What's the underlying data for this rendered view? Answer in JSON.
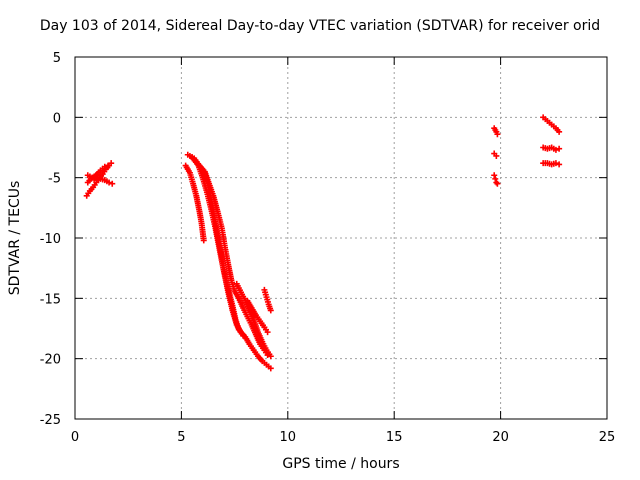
{
  "chart_data": {
    "type": "scatter",
    "title": "Day 103 of 2014, Sidereal Day-to-day VTEC variation (SDTVAR) for receiver orid",
    "xlabel": "GPS time / hours",
    "ylabel": "SDTVAR / TECUs",
    "xlim": [
      0,
      25
    ],
    "ylim": [
      -25,
      5
    ],
    "xticks": [
      "0",
      "5",
      "10",
      "15",
      "20",
      "25"
    ],
    "yticks": [
      "5",
      "0",
      "-5",
      "-10",
      "-15",
      "-20",
      "-25"
    ],
    "grid": true,
    "marker": "plus",
    "color": "#ff0000",
    "series": [
      {
        "values": [
          [
            0.55,
            -6.5
          ],
          [
            0.7,
            -6.1
          ],
          [
            0.85,
            -5.8
          ],
          [
            1.0,
            -5.4
          ],
          [
            1.15,
            -5.0
          ],
          [
            1.3,
            -4.7
          ],
          [
            1.45,
            -4.3
          ],
          [
            1.6,
            -4.0
          ],
          [
            1.7,
            -3.8
          ]
        ]
      },
      {
        "values": [
          [
            0.6,
            -5.4
          ],
          [
            0.75,
            -5.1
          ],
          [
            0.9,
            -4.9
          ],
          [
            1.05,
            -4.7
          ],
          [
            1.2,
            -4.4
          ],
          [
            1.4,
            -4.1
          ],
          [
            1.55,
            -4.0
          ]
        ]
      },
      {
        "values": [
          [
            0.6,
            -4.8
          ],
          [
            0.8,
            -5.0
          ],
          [
            1.0,
            -5.2
          ],
          [
            1.2,
            -5.1
          ],
          [
            1.4,
            -5.2
          ],
          [
            1.6,
            -5.4
          ],
          [
            1.75,
            -5.5
          ]
        ]
      },
      {
        "values": [
          [
            5.2,
            -4.0
          ],
          [
            5.4,
            -4.6
          ],
          [
            5.55,
            -5.5
          ],
          [
            5.7,
            -6.5
          ],
          [
            5.85,
            -7.8
          ],
          [
            5.95,
            -8.8
          ],
          [
            6.05,
            -10.2
          ]
        ]
      },
      {
        "values": [
          [
            5.3,
            -3.1
          ],
          [
            5.6,
            -3.4
          ],
          [
            5.85,
            -4.0
          ],
          [
            6.1,
            -4.5
          ],
          [
            6.3,
            -5.5
          ],
          [
            6.5,
            -6.5
          ],
          [
            6.7,
            -7.8
          ],
          [
            6.9,
            -9.2
          ],
          [
            7.05,
            -10.8
          ],
          [
            7.2,
            -12.2
          ],
          [
            7.35,
            -13.5
          ],
          [
            7.5,
            -14.4
          ],
          [
            7.7,
            -15.0
          ],
          [
            7.9,
            -15.8
          ],
          [
            8.1,
            -16.5
          ],
          [
            8.3,
            -17.2
          ],
          [
            8.5,
            -18.0
          ],
          [
            8.7,
            -18.8
          ],
          [
            8.9,
            -19.3
          ],
          [
            9.05,
            -19.7
          ]
        ]
      },
      {
        "values": [
          [
            5.5,
            -3.3
          ],
          [
            5.8,
            -4.0
          ],
          [
            6.0,
            -5.0
          ],
          [
            6.2,
            -6.2
          ],
          [
            6.4,
            -7.6
          ],
          [
            6.6,
            -9.2
          ],
          [
            6.8,
            -11.0
          ],
          [
            7.0,
            -12.8
          ],
          [
            7.2,
            -14.5
          ],
          [
            7.4,
            -16.0
          ],
          [
            7.6,
            -17.2
          ],
          [
            7.8,
            -17.8
          ],
          [
            8.0,
            -18.2
          ],
          [
            8.2,
            -18.8
          ],
          [
            8.4,
            -19.3
          ],
          [
            8.6,
            -19.8
          ],
          [
            8.8,
            -20.2
          ],
          [
            9.0,
            -20.5
          ],
          [
            9.2,
            -20.8
          ]
        ]
      },
      {
        "values": [
          [
            6.1,
            -4.6
          ],
          [
            6.3,
            -6.0
          ],
          [
            6.5,
            -7.8
          ],
          [
            6.7,
            -9.8
          ],
          [
            6.9,
            -11.6
          ],
          [
            7.05,
            -13.0
          ],
          [
            7.2,
            -14.2
          ],
          [
            7.4,
            -15.6
          ],
          [
            7.55,
            -16.8
          ],
          [
            7.7,
            -17.6
          ],
          [
            7.9,
            -18.1
          ]
        ]
      },
      {
        "values": [
          [
            7.6,
            -13.8
          ],
          [
            7.8,
            -14.5
          ],
          [
            8.0,
            -15.2
          ],
          [
            8.2,
            -16.0
          ],
          [
            8.4,
            -16.8
          ],
          [
            8.6,
            -17.8
          ],
          [
            8.8,
            -18.6
          ],
          [
            9.0,
            -19.3
          ],
          [
            9.2,
            -19.8
          ]
        ]
      },
      {
        "values": [
          [
            8.1,
            -15.2
          ],
          [
            8.3,
            -15.8
          ],
          [
            8.5,
            -16.4
          ],
          [
            8.7,
            -16.9
          ],
          [
            8.9,
            -17.4
          ],
          [
            9.05,
            -17.8
          ]
        ]
      },
      {
        "values": [
          [
            8.9,
            -14.3
          ],
          [
            9.0,
            -14.9
          ],
          [
            9.1,
            -15.5
          ],
          [
            9.2,
            -16.0
          ]
        ]
      },
      {
        "values": [
          [
            19.7,
            -0.9
          ],
          [
            19.8,
            -1.2
          ],
          [
            19.85,
            -1.4
          ]
        ]
      },
      {
        "values": [
          [
            19.7,
            -3.0
          ],
          [
            19.8,
            -3.2
          ]
        ]
      },
      {
        "values": [
          [
            19.7,
            -4.8
          ],
          [
            19.75,
            -5.1
          ],
          [
            19.8,
            -5.4
          ],
          [
            19.85,
            -5.5
          ]
        ]
      },
      {
        "values": [
          [
            22.0,
            0.0
          ],
          [
            22.2,
            -0.3
          ],
          [
            22.4,
            -0.6
          ],
          [
            22.6,
            -0.9
          ],
          [
            22.75,
            -1.2
          ]
        ]
      },
      {
        "values": [
          [
            22.0,
            -2.5
          ],
          [
            22.2,
            -2.6
          ],
          [
            22.4,
            -2.5
          ],
          [
            22.6,
            -2.7
          ],
          [
            22.75,
            -2.6
          ]
        ]
      },
      {
        "values": [
          [
            22.0,
            -3.8
          ],
          [
            22.2,
            -3.8
          ],
          [
            22.4,
            -3.9
          ],
          [
            22.6,
            -3.8
          ],
          [
            22.75,
            -3.9
          ]
        ]
      }
    ]
  }
}
